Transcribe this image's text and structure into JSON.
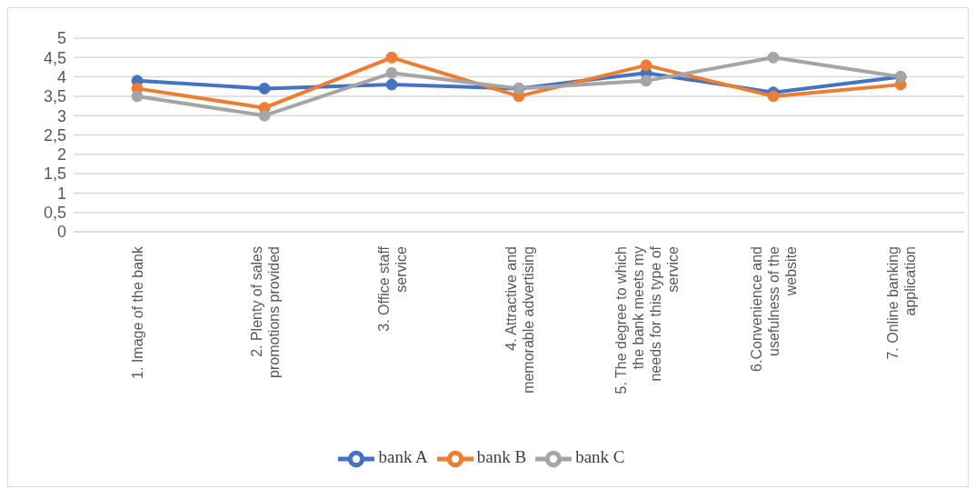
{
  "chart_data": {
    "type": "line",
    "categories": [
      "1. Image of the bank",
      "2. Plenty of sales promotions provided",
      "3. Office staff service",
      "4. Attractive and memorable advertising",
      "5. The degree to which the bank meets my needs for this type of service",
      "6.Convenience and usefulness of the website",
      "7. Online banking application"
    ],
    "series": [
      {
        "name": "bank A",
        "color": "#4472c4",
        "values": [
          3.9,
          3.7,
          3.8,
          3.7,
          4.1,
          3.6,
          4.0
        ]
      },
      {
        "name": "bank B",
        "color": "#ed7d31",
        "values": [
          3.7,
          3.2,
          4.5,
          3.5,
          4.3,
          3.5,
          3.8
        ]
      },
      {
        "name": "bank C",
        "color": "#a5a5a5",
        "values": [
          3.5,
          3.0,
          4.1,
          3.7,
          3.9,
          4.5,
          4.0
        ]
      }
    ],
    "ylim": [
      0,
      5
    ],
    "yticks": [
      0,
      {
        "value": 0.5,
        "label": "0,5"
      },
      1,
      {
        "value": 1.5,
        "label": "1,5"
      },
      2,
      {
        "value": 2.5,
        "label": "2,5"
      },
      3,
      {
        "value": 3.5,
        "label": "3,5"
      },
      4,
      {
        "value": 4.5,
        "label": "4,5"
      },
      5
    ],
    "grid": "y",
    "legend": "bottom",
    "marker": "circle",
    "line_style": "solid"
  }
}
